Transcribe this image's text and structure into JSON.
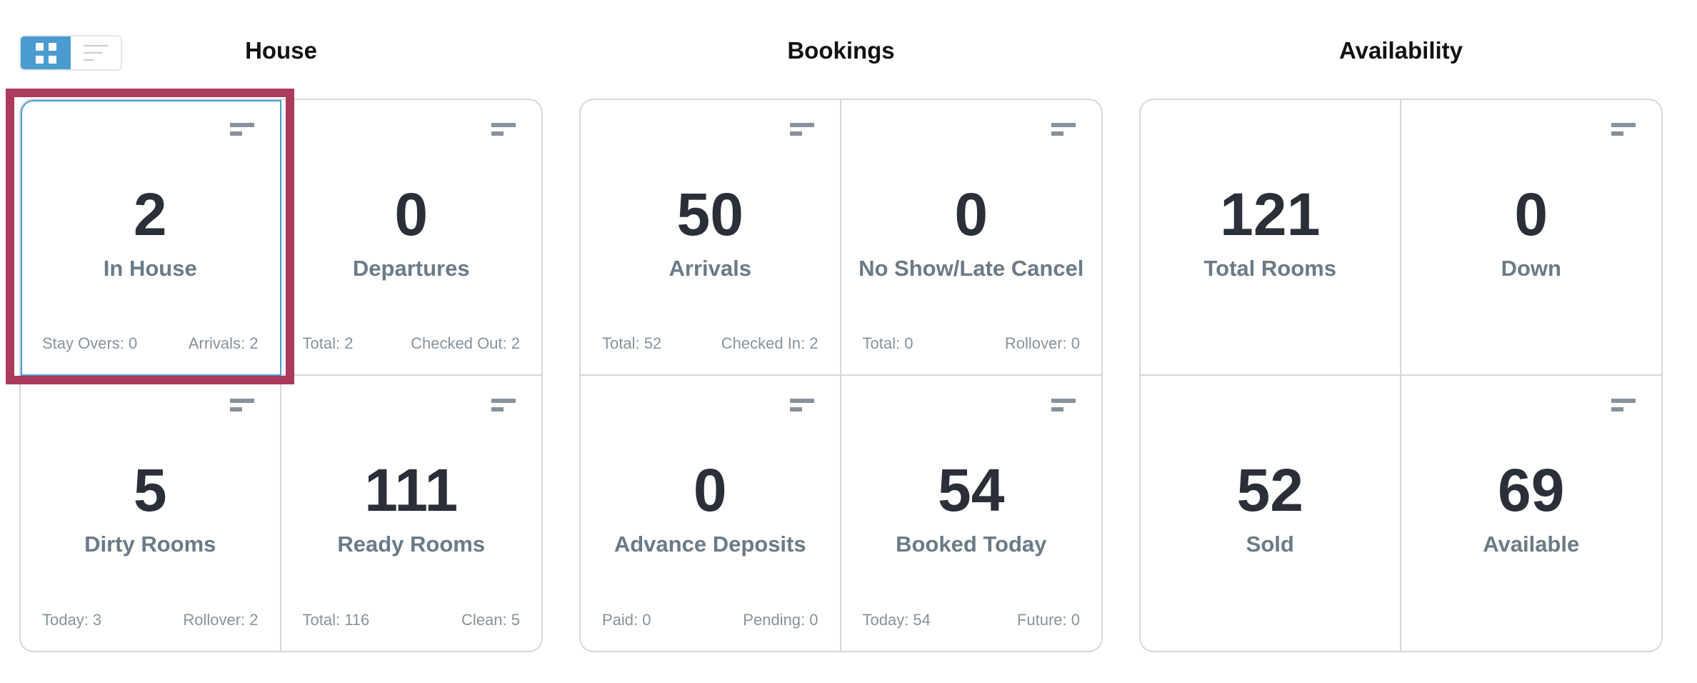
{
  "view_toggle": {
    "grid_icon": "grid-icon",
    "list_icon": "list-icon",
    "active": "grid",
    "accent": "#4b9bd0"
  },
  "sections": [
    {
      "title": "House",
      "tiles": [
        {
          "value": "2",
          "label": "In House",
          "footer": [
            "Stay Overs: 0",
            "Arrivals: 2"
          ],
          "menu": true,
          "selected": true
        },
        {
          "value": "0",
          "label": "Departures",
          "footer": [
            "Total: 2",
            "Checked Out: 2"
          ],
          "menu": true
        },
        {
          "value": "5",
          "label": "Dirty Rooms",
          "footer": [
            "Today: 3",
            "Rollover: 2"
          ],
          "menu": true
        },
        {
          "value": "111",
          "label": "Ready Rooms",
          "footer": [
            "Total: 116",
            "Clean: 5"
          ],
          "menu": true
        }
      ]
    },
    {
      "title": "Bookings",
      "tiles": [
        {
          "value": "50",
          "label": "Arrivals",
          "footer": [
            "Total: 52",
            "Checked In: 2"
          ],
          "menu": true
        },
        {
          "value": "0",
          "label": "No Show/Late Cancel",
          "footer": [
            "Total: 0",
            "Rollover: 0"
          ],
          "menu": true
        },
        {
          "value": "0",
          "label": "Advance Deposits",
          "footer": [
            "Paid: 0",
            "Pending: 0"
          ],
          "menu": true
        },
        {
          "value": "54",
          "label": "Booked Today",
          "footer": [
            "Today: 54",
            "Future: 0"
          ],
          "menu": true
        }
      ]
    },
    {
      "title": "Availability",
      "tiles": [
        {
          "value": "121",
          "label": "Total Rooms",
          "footer": [],
          "menu": false
        },
        {
          "value": "0",
          "label": "Down",
          "footer": [],
          "menu": true
        },
        {
          "value": "52",
          "label": "Sold",
          "footer": [],
          "menu": false
        },
        {
          "value": "69",
          "label": "Available",
          "footer": [],
          "menu": true
        }
      ]
    }
  ],
  "highlight_color": "#ab3a5c"
}
